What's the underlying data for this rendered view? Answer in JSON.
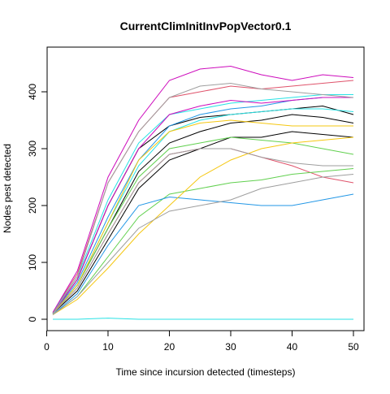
{
  "chart_data": {
    "type": "line",
    "title": "CurrentClimInitInvPopVector0.1",
    "xlabel": "Time since incursion detected (timesteps)",
    "ylabel": "Nodes pest detected",
    "xlim": [
      1,
      50
    ],
    "ylim": [
      0,
      460
    ],
    "x_ticks": [
      0,
      10,
      20,
      30,
      40,
      50
    ],
    "y_ticks": [
      0,
      100,
      200,
      300,
      400
    ],
    "grid": false,
    "legend": "none",
    "x": [
      1,
      5,
      10,
      15,
      20,
      25,
      30,
      35,
      40,
      45,
      50
    ],
    "series": [
      {
        "color": "#000000",
        "values": [
          10,
          70,
          200,
          300,
          340,
          355,
          360,
          365,
          370,
          375,
          360
        ]
      },
      {
        "color": "#000000",
        "values": [
          10,
          60,
          160,
          260,
          310,
          330,
          345,
          350,
          360,
          355,
          345
        ]
      },
      {
        "color": "#000000",
        "values": [
          10,
          50,
          140,
          230,
          280,
          300,
          320,
          320,
          330,
          325,
          320
        ]
      },
      {
        "color": "#DF536B",
        "values": [
          12,
          80,
          240,
          330,
          390,
          400,
          410,
          405,
          410,
          415,
          420
        ]
      },
      {
        "color": "#DF536B",
        "values": [
          10,
          55,
          150,
          240,
          290,
          300,
          300,
          285,
          270,
          250,
          240
        ]
      },
      {
        "color": "#61D04F",
        "values": [
          10,
          60,
          160,
          250,
          300,
          310,
          320,
          315,
          310,
          300,
          290
        ]
      },
      {
        "color": "#61D04F",
        "values": [
          8,
          40,
          110,
          180,
          220,
          230,
          240,
          245,
          255,
          260,
          265
        ]
      },
      {
        "color": "#2297E6",
        "values": [
          10,
          65,
          180,
          280,
          340,
          360,
          370,
          375,
          385,
          390,
          390
        ]
      },
      {
        "color": "#2297E6",
        "values": [
          8,
          45,
          130,
          200,
          215,
          210,
          205,
          200,
          200,
          210,
          220
        ]
      },
      {
        "color": "#28E2E5",
        "values": [
          12,
          75,
          210,
          310,
          360,
          370,
          380,
          385,
          390,
          395,
          395
        ]
      },
      {
        "color": "#28E2E5",
        "values": [
          10,
          60,
          170,
          270,
          330,
          350,
          360,
          365,
          370,
          370,
          365
        ]
      },
      {
        "color": "#CD0BBC",
        "values": [
          12,
          85,
          250,
          350,
          420,
          440,
          445,
          430,
          420,
          430,
          425
        ]
      },
      {
        "color": "#CD0BBC",
        "values": [
          10,
          70,
          200,
          300,
          360,
          375,
          385,
          380,
          385,
          390,
          390
        ]
      },
      {
        "color": "#F5C710",
        "values": [
          8,
          35,
          90,
          150,
          200,
          250,
          280,
          300,
          310,
          315,
          320
        ]
      },
      {
        "color": "#F5C710",
        "values": [
          10,
          60,
          170,
          280,
          330,
          345,
          350,
          345,
          340,
          340,
          340
        ]
      },
      {
        "color": "#9E9E9E",
        "values": [
          8,
          40,
          100,
          160,
          190,
          200,
          210,
          230,
          240,
          250,
          255
        ]
      },
      {
        "color": "#9E9E9E",
        "values": [
          10,
          75,
          240,
          330,
          390,
          410,
          415,
          405,
          400,
          395,
          390
        ]
      },
      {
        "color": "#9E9E9E",
        "values": [
          10,
          55,
          150,
          240,
          290,
          300,
          300,
          285,
          275,
          270,
          270
        ]
      },
      {
        "color": "#28E2E5",
        "values": [
          0,
          0,
          2,
          0,
          0,
          0,
          0,
          0,
          0,
          0,
          0
        ]
      }
    ]
  }
}
